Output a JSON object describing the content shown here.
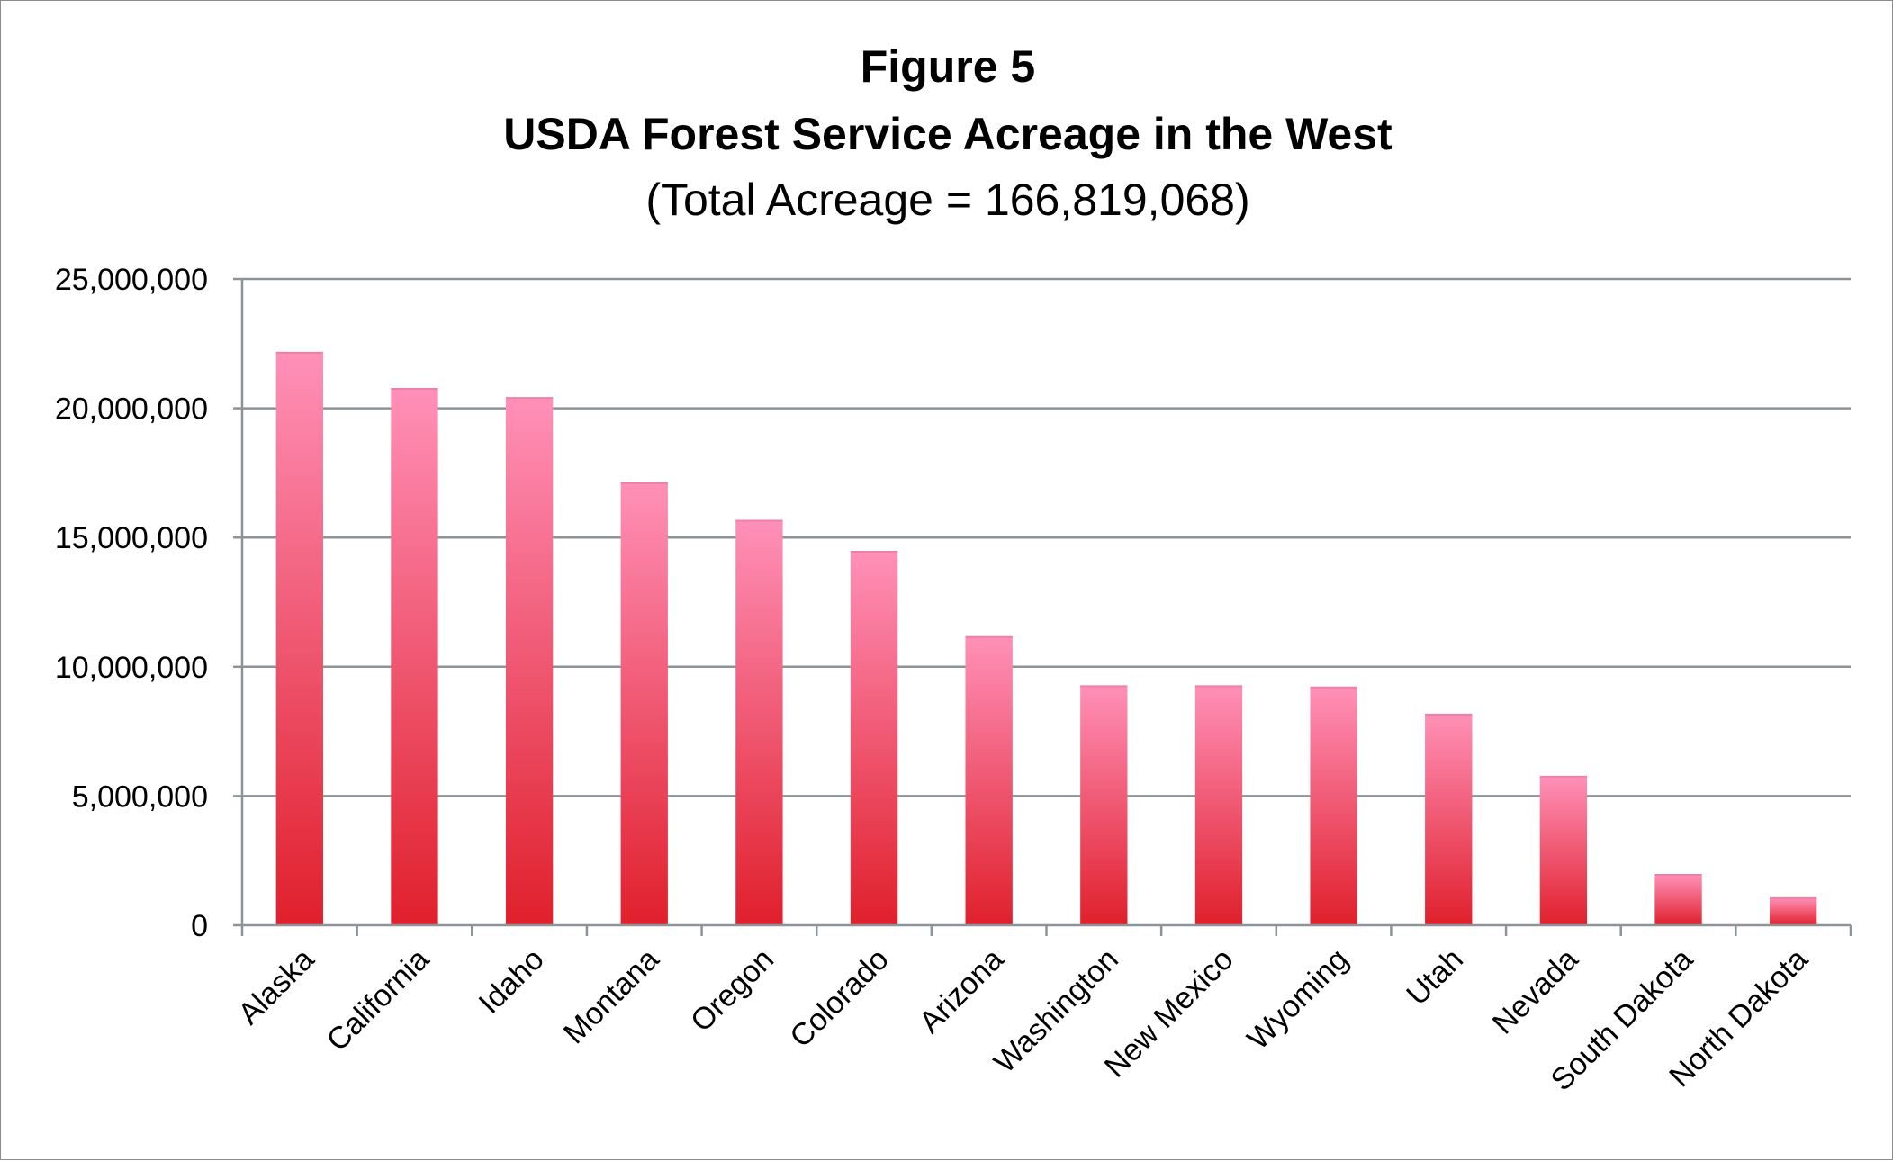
{
  "chart_data": {
    "type": "bar",
    "title": "Figure 5",
    "subtitle": "USDA Forest Service Acreage in the West",
    "note": "(Total Acreage = 166,819,068)",
    "categories": [
      "Alaska",
      "California",
      "Idaho",
      "Montana",
      "Oregon",
      "Colorado",
      "Arizona",
      "Washington",
      "New Mexico",
      "Wyoming",
      "Utah",
      "Nevada",
      "South Dakota",
      "North Dakota"
    ],
    "values": [
      22150000,
      20750000,
      20400000,
      17100000,
      15650000,
      14450000,
      11150000,
      9250000,
      9250000,
      9200000,
      8150000,
      5750000,
      1950000,
      1050000
    ],
    "yticks": [
      "0",
      "5,000,000",
      "10,000,000",
      "15,000,000",
      "20,000,000",
      "25,000,000"
    ],
    "ylim": [
      0,
      25000000
    ],
    "xlabel": "",
    "ylabel": "",
    "grid": true,
    "legend": "none",
    "bar_color_top": "#ff90b8",
    "bar_color_bottom": "#e0202c",
    "grid_color": "#8a9499"
  }
}
